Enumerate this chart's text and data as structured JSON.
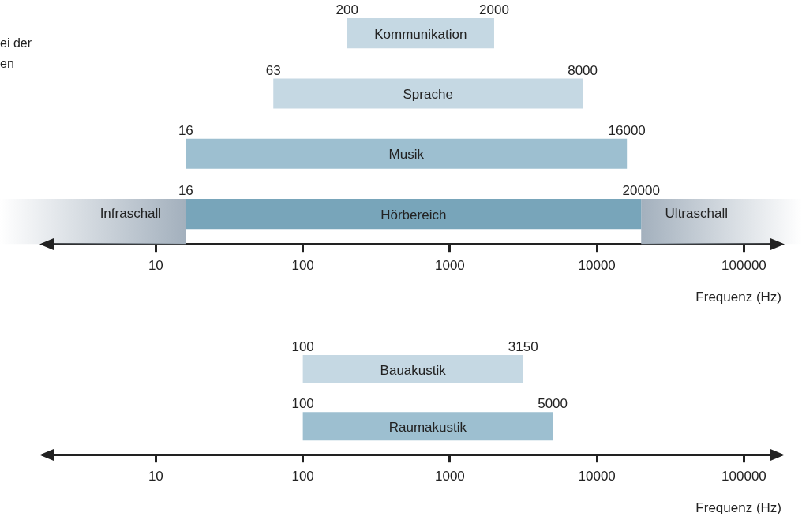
{
  "chart_data": [
    {
      "type": "bar",
      "orientation": "horizontal",
      "log": "x",
      "tick_labels": "x",
      "xlabel": "Frequenz (Hz)",
      "categories": [
        "Kommunikation",
        "Sprache",
        "Musik",
        "Hörbereich"
      ],
      "base": [
        200,
        63,
        16,
        16
      ],
      "values": [
        1800,
        7937,
        15984,
        19984
      ],
      "colors": [
        "#c5d8e3",
        "#c5d8e3",
        "#9dbfd0",
        "#78a5ba"
      ],
      "xlim": [
        1.7,
        180000
      ],
      "xticks": [
        10,
        100,
        1000,
        10000,
        100000
      ],
      "bands": [
        {
          "axis": "x",
          "from": 1.7,
          "to": 16,
          "label": "Infraschall",
          "color": "#a3b0bd"
        },
        {
          "axis": "x",
          "from": 20000,
          "to": 180000,
          "label": "Ultraschall",
          "color": "#a3b0bd"
        }
      ],
      "annotations": [
        "ei der",
        "en",
        {
          "text": "200",
          "x": 200,
          "y": "Kommunikation"
        },
        {
          "text": "2000",
          "x": 2000,
          "y": "Kommunikation"
        },
        {
          "text": "63",
          "x": 63,
          "y": "Sprache"
        },
        {
          "text": "8000",
          "x": 8000,
          "y": "Sprache"
        },
        {
          "text": "16",
          "x": 16,
          "y": "Musik"
        },
        {
          "text": "16000",
          "x": 16000,
          "y": "Musik"
        },
        {
          "text": "16",
          "x": 16,
          "y": "Hörbereich"
        },
        {
          "text": "20000",
          "x": 20000,
          "y": "Hörbereich"
        }
      ]
    },
    {
      "type": "bar",
      "orientation": "horizontal",
      "log": "x",
      "tick_labels": "x",
      "xlabel": "Frequenz (Hz)",
      "categories": [
        "Bauakustik",
        "Raumakustik"
      ],
      "base": [
        100,
        100
      ],
      "values": [
        3050,
        4900
      ],
      "colors": [
        "#c5d8e3",
        "#9dbfd0"
      ],
      "xlim": [
        1.7,
        180000
      ],
      "xticks": [
        10,
        100,
        1000,
        10000,
        100000
      ],
      "annotations": [
        {
          "text": "100",
          "x": 100,
          "y": "Bauakustik"
        },
        {
          "text": "3150",
          "x": 3150,
          "y": "Bauakustik"
        },
        {
          "text": "100",
          "x": 100,
          "y": "Raumakustik"
        },
        {
          "text": "5000",
          "x": 5000,
          "y": "Raumakustik"
        }
      ]
    }
  ]
}
